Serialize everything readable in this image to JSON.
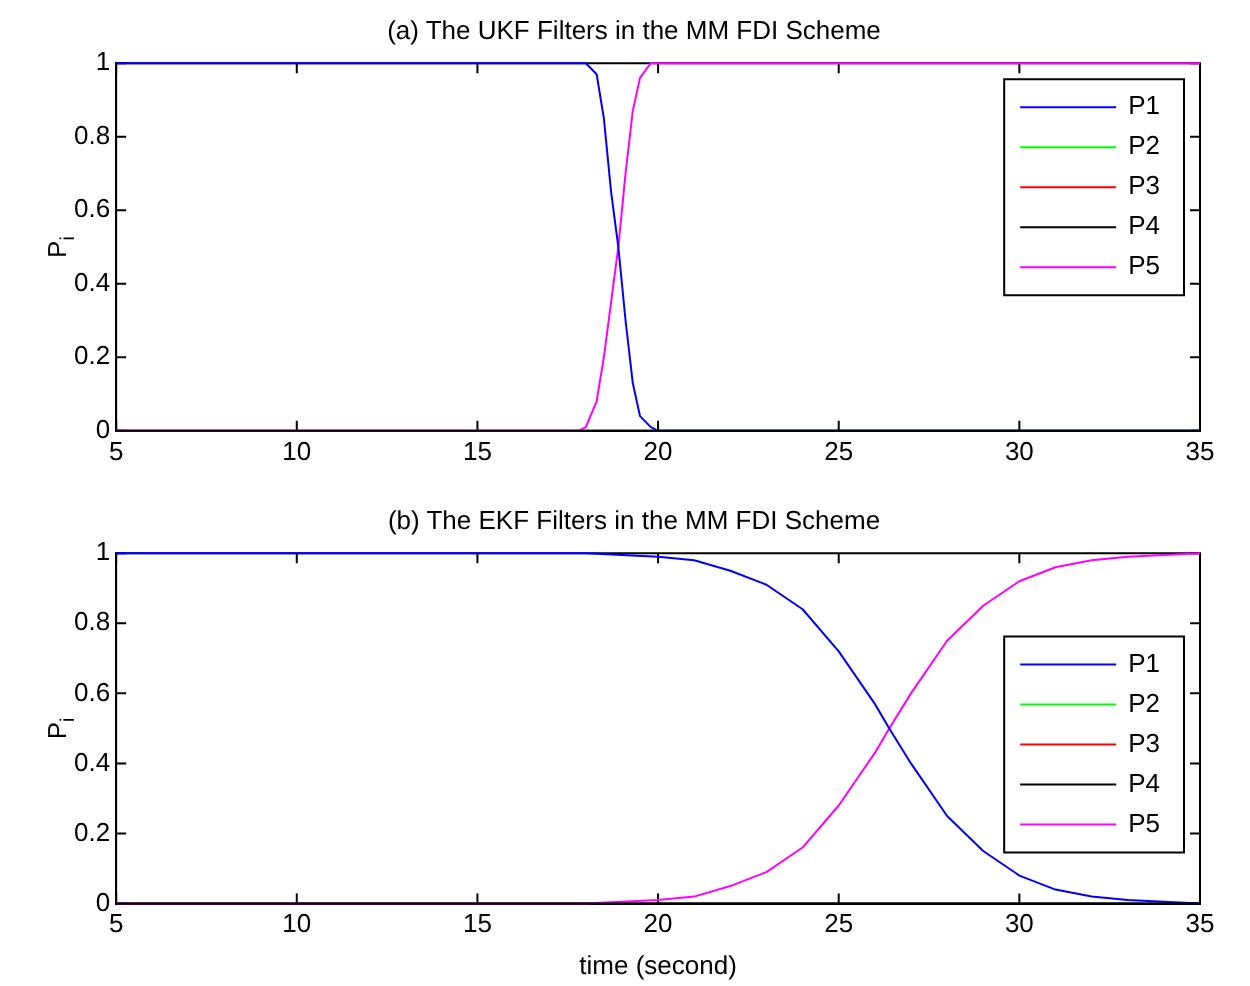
{
  "chart_data": [
    {
      "type": "line",
      "title": "(a) The UKF Filters in the MM FDI Scheme",
      "ylabel": "P$_{i}$",
      "xlim": [
        5,
        35
      ],
      "xticks": [
        5,
        10,
        15,
        20,
        25,
        30,
        35
      ],
      "ylim": [
        0,
        1
      ],
      "yticks": [
        0,
        0.2,
        0.4,
        0.6,
        0.8,
        1
      ],
      "grid": false,
      "legend": "top right",
      "marker": "none",
      "line_style": "solid",
      "series": [
        {
          "name": "P1",
          "color": "#0000ff",
          "x": [
            5,
            18,
            18.3,
            18.5,
            18.7,
            18.9,
            19.1,
            19.3,
            19.5,
            19.8,
            20,
            35
          ],
          "values": [
            1,
            1,
            0.97,
            0.85,
            0.65,
            0.5,
            0.3,
            0.13,
            0.04,
            0.01,
            0,
            0
          ]
        },
        {
          "name": "P2",
          "color": "#00ff00",
          "values": [
            null,
            null
          ]
        },
        {
          "name": "P3",
          "color": "#ff0000",
          "values": [
            null,
            null
          ]
        },
        {
          "name": "P4",
          "color": "#000000",
          "x": [
            5,
            35
          ],
          "values": [
            0,
            0
          ]
        },
        {
          "name": "P5",
          "color": "#ff00ff",
          "x": [
            5,
            17.8,
            18,
            18.3,
            18.5,
            18.7,
            18.9,
            19.1,
            19.3,
            19.5,
            19.8,
            35
          ],
          "values": [
            0,
            0,
            0.01,
            0.08,
            0.2,
            0.35,
            0.5,
            0.7,
            0.87,
            0.96,
            1,
            1
          ]
        }
      ]
    },
    {
      "type": "line",
      "title": "(b) The EKF Filters in the MM FDI Scheme",
      "xlabel": "time (second)",
      "ylabel": "P$_{i}$",
      "xlim": [
        5,
        35
      ],
      "xticks": [
        5,
        10,
        15,
        20,
        25,
        30,
        35
      ],
      "ylim": [
        0,
        1
      ],
      "yticks": [
        0,
        0.2,
        0.4,
        0.6,
        0.8,
        1
      ],
      "grid": false,
      "legend": "right",
      "marker": "none",
      "line_style": "solid",
      "series": [
        {
          "name": "P1",
          "color": "#0000ff",
          "x": [
            5,
            15,
            18,
            20,
            21,
            22,
            23,
            24,
            25,
            26,
            26.4,
            27,
            28,
            29,
            30,
            31,
            32,
            33,
            35
          ],
          "values": [
            1,
            1,
            1,
            0.99,
            0.98,
            0.95,
            0.91,
            0.84,
            0.72,
            0.57,
            0.5,
            0.4,
            0.25,
            0.15,
            0.08,
            0.04,
            0.02,
            0.01,
            0
          ]
        },
        {
          "name": "P2",
          "color": "#00ff00",
          "values": [
            null,
            null
          ]
        },
        {
          "name": "P3",
          "color": "#ff0000",
          "values": [
            null,
            null
          ]
        },
        {
          "name": "P4",
          "color": "#000000",
          "x": [
            5,
            35
          ],
          "values": [
            0,
            0
          ]
        },
        {
          "name": "P5",
          "color": "#ff00ff",
          "x": [
            5,
            15,
            18,
            20,
            21,
            22,
            23,
            24,
            25,
            26,
            26.4,
            27,
            28,
            29,
            30,
            31,
            32,
            33,
            35
          ],
          "values": [
            0,
            0,
            0,
            0.01,
            0.02,
            0.05,
            0.09,
            0.16,
            0.28,
            0.43,
            0.5,
            0.6,
            0.75,
            0.85,
            0.92,
            0.96,
            0.98,
            0.99,
            1
          ]
        }
      ]
    }
  ]
}
